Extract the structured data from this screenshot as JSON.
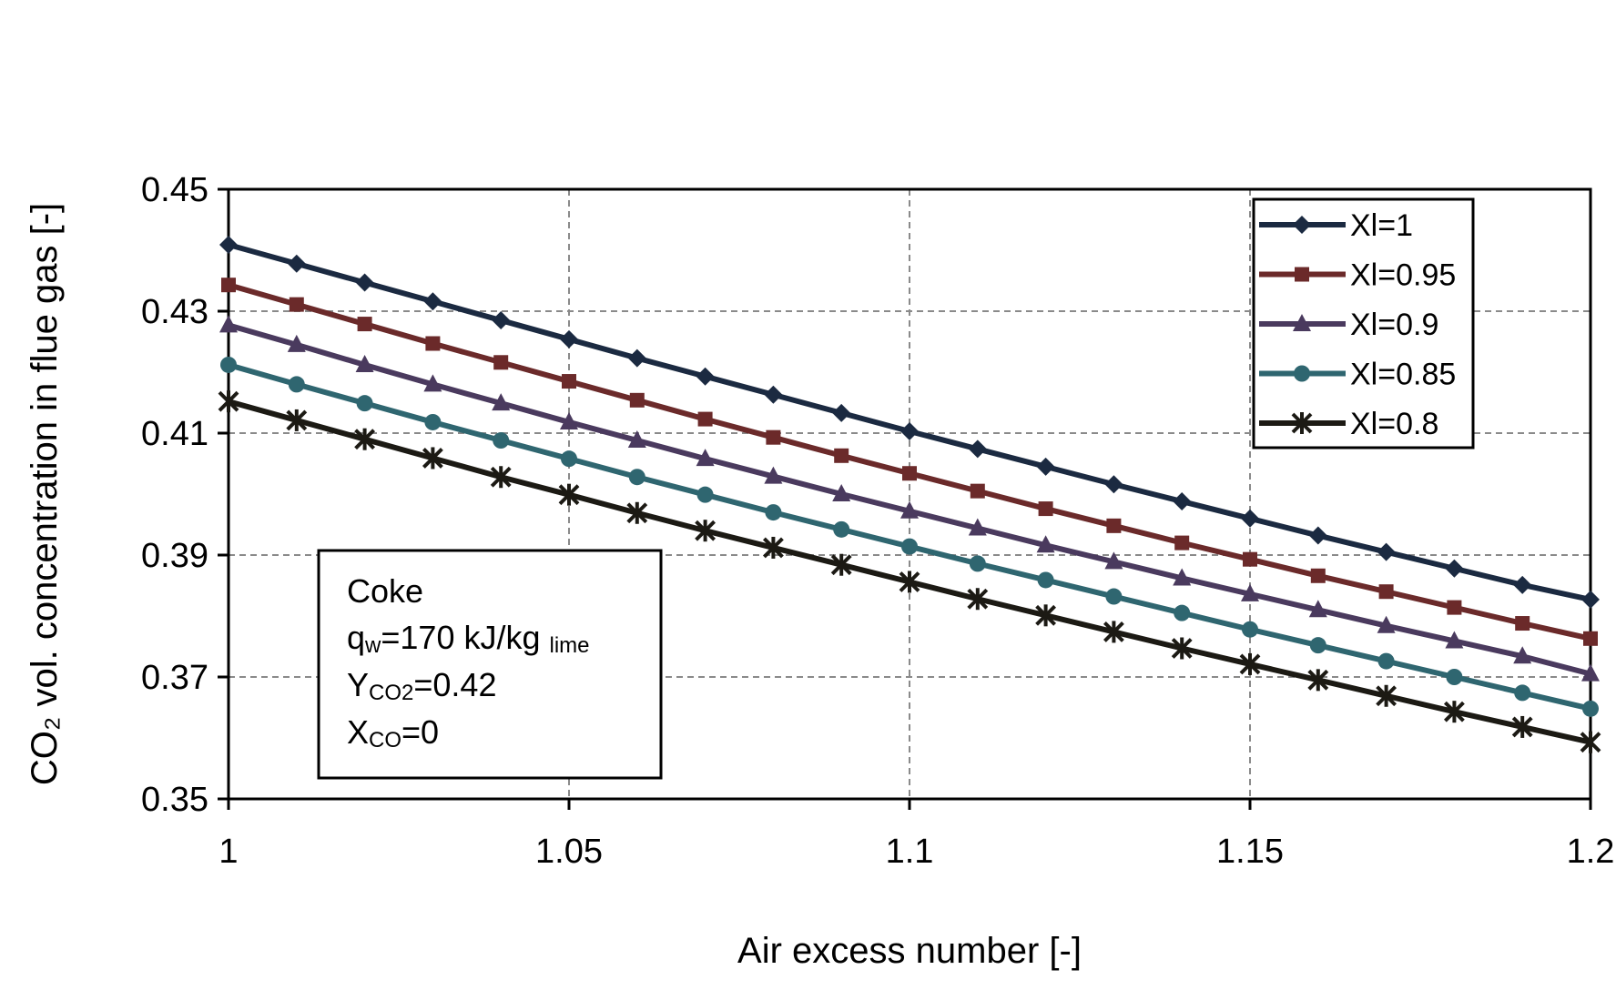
{
  "chart_data": {
    "type": "line",
    "xlabel": "Air excess number [-]",
    "ylabel": "CO₂ vol. concentration in flue gas [-]",
    "xlim": [
      1,
      1.2
    ],
    "ylim": [
      0.35,
      0.45
    ],
    "x_ticks": [
      "1",
      "1.05",
      "1.1",
      "1.15",
      "1.2"
    ],
    "y_ticks": [
      "0.35",
      "0.37",
      "0.39",
      "0.41",
      "0.43",
      "0.45"
    ],
    "x_tick_values": [
      1,
      1.05,
      1.1,
      1.15,
      1.2
    ],
    "y_tick_values": [
      0.35,
      0.37,
      0.39,
      0.41,
      0.43,
      0.45
    ],
    "grid": true,
    "legend_position": "top-right",
    "x": [
      1.0,
      1.01,
      1.02,
      1.03,
      1.04,
      1.05,
      1.06,
      1.07,
      1.08,
      1.09,
      1.1,
      1.11,
      1.12,
      1.13,
      1.14,
      1.15,
      1.16,
      1.17,
      1.18,
      1.19,
      1.2
    ],
    "series": [
      {
        "name": "Xl=1",
        "color": "#1b2a41",
        "marker": "diamond",
        "values": [
          0.4409,
          0.4378,
          0.4347,
          0.4316,
          0.4285,
          0.4254,
          0.4223,
          0.4193,
          0.4163,
          0.4133,
          0.4103,
          0.4074,
          0.4045,
          0.4016,
          0.3988,
          0.396,
          0.3932,
          0.3905,
          0.3878,
          0.3851,
          0.3827
        ]
      },
      {
        "name": "Xl=0.95",
        "color": "#6b2a2a",
        "marker": "square",
        "values": [
          0.4343,
          0.4311,
          0.4279,
          0.4247,
          0.4216,
          0.4185,
          0.4154,
          0.4123,
          0.4093,
          0.4063,
          0.4034,
          0.4005,
          0.3976,
          0.3948,
          0.392,
          0.3893,
          0.3866,
          0.384,
          0.3814,
          0.3788,
          0.3763
        ]
      },
      {
        "name": "Xl=0.9",
        "color": "#4a3a5e",
        "marker": "triangle",
        "values": [
          0.4277,
          0.4245,
          0.4212,
          0.418,
          0.4149,
          0.4118,
          0.4088,
          0.4058,
          0.4029,
          0.4,
          0.3972,
          0.3944,
          0.3916,
          0.3889,
          0.3862,
          0.3836,
          0.381,
          0.3784,
          0.3759,
          0.3734,
          0.3705
        ]
      },
      {
        "name": "Xl=0.85",
        "color": "#2f6670",
        "marker": "circle",
        "values": [
          0.4212,
          0.418,
          0.4149,
          0.4118,
          0.4088,
          0.4058,
          0.4028,
          0.3999,
          0.397,
          0.3942,
          0.3914,
          0.3886,
          0.3859,
          0.3832,
          0.3805,
          0.3778,
          0.3752,
          0.3726,
          0.37,
          0.3674,
          0.3648
        ]
      },
      {
        "name": "Xl=0.8",
        "color": "#1c1a14",
        "marker": "star",
        "values": [
          0.4152,
          0.4121,
          0.409,
          0.4059,
          0.4028,
          0.3999,
          0.3969,
          0.394,
          0.3912,
          0.3884,
          0.3856,
          0.3828,
          0.3801,
          0.3774,
          0.3747,
          0.3721,
          0.3695,
          0.3669,
          0.3643,
          0.3618,
          0.3593
        ]
      }
    ],
    "annotation": {
      "line1": "Coke",
      "line2_main": "q",
      "line2_sub": "w",
      "line2_rest": "=170 kJ/kg",
      "line2_tail": "lime",
      "line3_main": "Y",
      "line3_sub": "CO2",
      "line3_rest": "=0.42",
      "line4_main": "X",
      "line4_sub": "CO",
      "line4_rest": "=0"
    }
  }
}
